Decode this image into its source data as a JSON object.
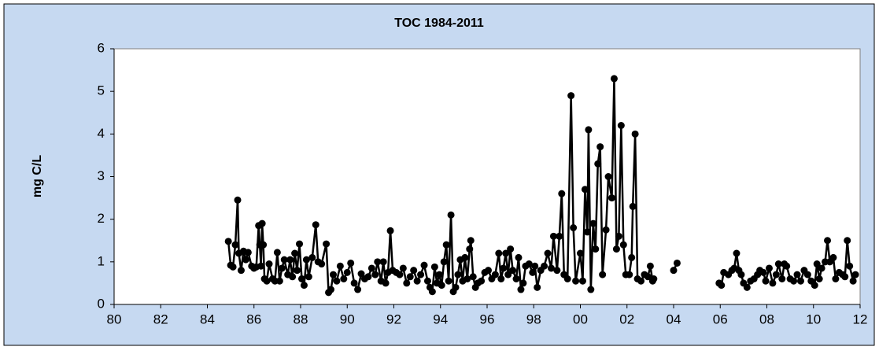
{
  "chart_data": {
    "type": "line",
    "title": "TOC 1984-2011",
    "ylabel": "mg C/L",
    "color": "#000000",
    "grid": false,
    "xlim": [
      1980,
      2012
    ],
    "xticks": [
      {
        "value": 1980,
        "label": "80"
      },
      {
        "value": 1982,
        "label": "82"
      },
      {
        "value": 1984,
        "label": "84"
      },
      {
        "value": 1986,
        "label": "86"
      },
      {
        "value": 1988,
        "label": "88"
      },
      {
        "value": 1990,
        "label": "90"
      },
      {
        "value": 1992,
        "label": "92"
      },
      {
        "value": 1994,
        "label": "94"
      },
      {
        "value": 1996,
        "label": "96"
      },
      {
        "value": 1998,
        "label": "98"
      },
      {
        "value": 2000,
        "label": "00"
      },
      {
        "value": 2002,
        "label": "02"
      },
      {
        "value": 2004,
        "label": "04"
      },
      {
        "value": 2006,
        "label": "06"
      },
      {
        "value": 2008,
        "label": "08"
      },
      {
        "value": 2010,
        "label": "10"
      },
      {
        "value": 2012,
        "label": "12"
      }
    ],
    "ylim": [
      0,
      6
    ],
    "yticks": [
      0,
      1,
      2,
      3,
      4,
      5,
      6
    ],
    "x": [
      1984.9,
      1985.0,
      1985.1,
      1985.2,
      1985.3,
      1985.35,
      1985.45,
      1985.55,
      1985.65,
      1985.75,
      1985.9,
      1986.0,
      1986.1,
      1986.2,
      1986.25,
      1986.3,
      1986.35,
      1986.4,
      1986.45,
      1986.55,
      1986.65,
      1986.8,
      1986.9,
      1987.0,
      1987.1,
      1987.2,
      1987.3,
      1987.45,
      1987.55,
      1987.65,
      1987.75,
      1987.85,
      1987.95,
      1988.05,
      1988.15,
      1988.25,
      1988.35,
      1988.5,
      1988.65,
      1988.75,
      1988.9,
      1989.1,
      1989.2,
      1989.3,
      1989.4,
      1989.55,
      1989.7,
      1989.85,
      1990.0,
      1990.15,
      1990.3,
      1990.45,
      1990.6,
      1990.75,
      1990.9,
      1991.05,
      1991.2,
      1991.3,
      1991.45,
      1991.55,
      1991.65,
      1991.75,
      1991.85,
      1991.95,
      1992.1,
      1992.25,
      1992.4,
      1992.55,
      1992.7,
      1992.85,
      1993.0,
      1993.15,
      1993.3,
      1993.45,
      1993.55,
      1993.65,
      1993.75,
      1993.85,
      1993.95,
      1994.05,
      1994.15,
      1994.25,
      1994.35,
      1994.45,
      1994.55,
      1994.65,
      1994.75,
      1994.85,
      1994.95,
      1995.05,
      1995.15,
      1995.25,
      1995.3,
      1995.4,
      1995.5,
      1995.6,
      1995.75,
      1995.9,
      1996.05,
      1996.2,
      1996.35,
      1996.5,
      1996.6,
      1996.7,
      1996.8,
      1996.9,
      1997.0,
      1997.1,
      1997.25,
      1997.35,
      1997.45,
      1997.55,
      1997.65,
      1997.8,
      1997.95,
      1998.05,
      1998.15,
      1998.3,
      1998.45,
      1998.6,
      1998.75,
      1998.85,
      1999.0,
      1999.1,
      1999.2,
      1999.3,
      1999.45,
      1999.6,
      1999.7,
      1999.8,
      2000.0,
      2000.1,
      2000.2,
      2000.3,
      2000.35,
      2000.45,
      2000.55,
      2000.65,
      2000.75,
      2000.85,
      2000.95,
      2001.1,
      2001.2,
      2001.35,
      2001.45,
      2001.55,
      2001.65,
      2001.75,
      2001.85,
      2001.95,
      2002.1,
      2002.2,
      2002.25,
      2002.35,
      2002.45,
      2002.6,
      2002.75,
      2002.9,
      2003.0,
      2003.1,
      2003.15,
      null,
      2004.0,
      2004.15,
      null,
      2005.95,
      2006.05,
      2006.15,
      2006.35,
      2006.5,
      2006.6,
      2006.7,
      2006.8,
      2006.9,
      2007.0,
      2007.15,
      2007.3,
      2007.45,
      2007.6,
      2007.7,
      2007.85,
      2007.95,
      2008.1,
      2008.25,
      2008.4,
      2008.5,
      2008.65,
      2008.75,
      2008.85,
      2009.0,
      2009.15,
      2009.3,
      2009.45,
      2009.6,
      2009.75,
      2009.9,
      2010.05,
      2010.15,
      2010.25,
      2010.35,
      2010.5,
      2010.6,
      2010.7,
      2010.85,
      2010.95,
      2011.1,
      2011.25,
      2011.35,
      2011.45,
      2011.55,
      2011.7,
      2011.8
    ],
    "values": [
      1.48,
      0.92,
      0.88,
      1.4,
      2.45,
      1.2,
      0.8,
      1.25,
      1.05,
      1.22,
      0.9,
      0.85,
      0.88,
      1.85,
      1.4,
      0.9,
      1.9,
      1.4,
      0.6,
      0.55,
      0.95,
      0.6,
      0.55,
      1.22,
      0.55,
      0.85,
      1.05,
      0.7,
      1.05,
      0.65,
      1.2,
      0.8,
      1.42,
      0.6,
      0.45,
      1.05,
      0.65,
      1.1,
      1.87,
      1.0,
      0.95,
      1.42,
      0.28,
      0.35,
      0.7,
      0.55,
      0.9,
      0.6,
      0.75,
      0.97,
      0.5,
      0.35,
      0.72,
      0.6,
      0.65,
      0.85,
      0.7,
      1.0,
      0.55,
      1.0,
      0.5,
      0.75,
      1.73,
      0.8,
      0.75,
      0.7,
      0.85,
      0.5,
      0.65,
      0.8,
      0.55,
      0.7,
      0.92,
      0.55,
      0.4,
      0.3,
      0.88,
      0.5,
      0.7,
      0.45,
      1.0,
      1.4,
      0.55,
      2.1,
      0.3,
      0.4,
      0.7,
      1.05,
      0.55,
      1.1,
      0.6,
      1.3,
      1.5,
      0.65,
      0.4,
      0.5,
      0.55,
      0.75,
      0.8,
      0.6,
      0.7,
      1.2,
      0.6,
      0.85,
      1.2,
      0.7,
      1.3,
      0.8,
      0.6,
      1.1,
      0.35,
      0.5,
      0.9,
      0.95,
      0.75,
      0.9,
      0.4,
      0.8,
      0.9,
      1.2,
      0.85,
      1.6,
      0.8,
      1.6,
      2.6,
      0.7,
      0.6,
      4.9,
      1.8,
      0.55,
      1.2,
      0.55,
      2.7,
      1.7,
      4.1,
      0.35,
      1.9,
      1.3,
      3.3,
      3.7,
      0.7,
      1.75,
      3.0,
      2.5,
      5.3,
      1.3,
      1.6,
      4.2,
      1.4,
      0.7,
      0.7,
      1.1,
      2.3,
      4.0,
      0.6,
      0.55,
      0.7,
      0.65,
      0.9,
      0.55,
      0.6,
      null,
      0.8,
      0.97,
      null,
      0.5,
      0.45,
      0.75,
      0.7,
      0.8,
      0.85,
      1.2,
      0.8,
      0.7,
      0.5,
      0.4,
      0.55,
      0.6,
      0.7,
      0.8,
      0.75,
      0.55,
      0.85,
      0.5,
      0.7,
      0.95,
      0.6,
      0.95,
      0.9,
      0.6,
      0.55,
      0.7,
      0.55,
      0.8,
      0.7,
      0.55,
      0.45,
      0.95,
      0.6,
      0.85,
      1.0,
      1.5,
      1.0,
      1.1,
      0.6,
      0.75,
      0.7,
      0.65,
      1.5,
      0.9,
      0.55,
      0.7
    ]
  }
}
